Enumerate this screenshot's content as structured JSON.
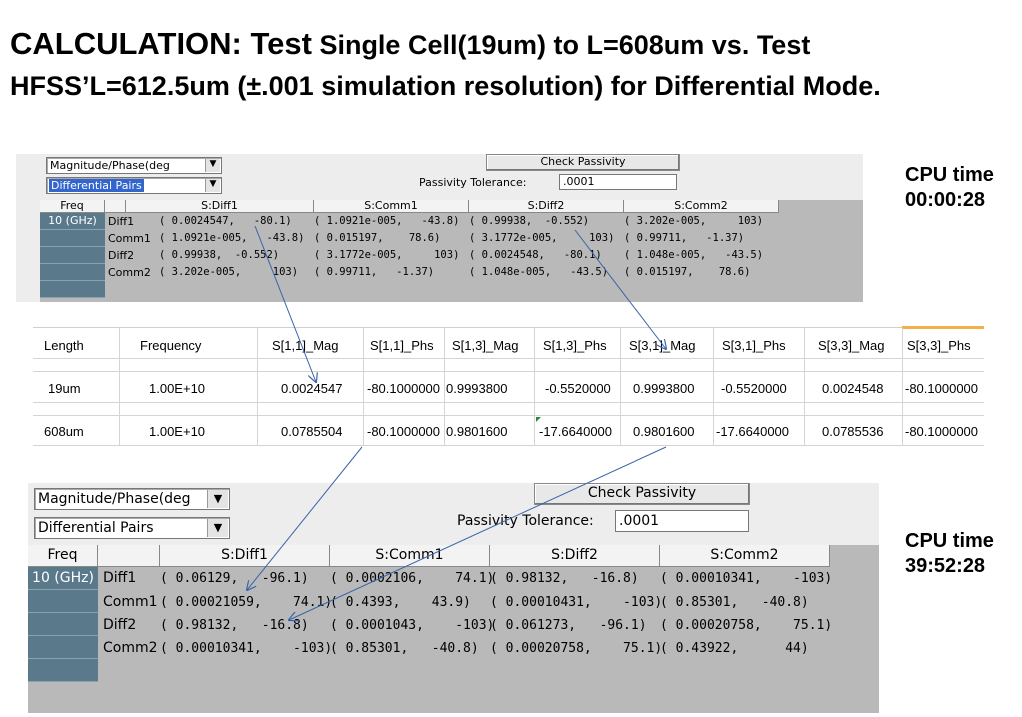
{
  "title": {
    "line1_big": "CALCULATION: Test",
    "line1_rest": " Single Cell(19um)  to  L=608um  vs. Test",
    "line2": "HFSS’L=612.5um (±.001 simulation resolution) for Differential Mode."
  },
  "cpu_top": {
    "label": "CPU time",
    "value": "00:00:28"
  },
  "cpu_bottom": {
    "label": "CPU time",
    "value": "39:52:28"
  },
  "top_panel": {
    "dropdown1": "Magnitude/Phase(deg",
    "dropdown2": "Differential Pairs",
    "check_button": "Check Passivity",
    "tolerance_label": "Passivity Tolerance:",
    "tolerance_value": ".0001",
    "headers": [
      "Freq",
      "S:Diff1",
      "S:Comm1",
      "S:Diff2",
      "S:Comm2"
    ],
    "freq": "10 (GHz)",
    "rows": [
      {
        "label": "Diff1",
        "c1": "( 0.0024547,   -80.1)",
        "c2": "( 1.0921e-005,   -43.8)",
        "c3": "( 0.99938,  -0.552)",
        "c4": "( 3.202e-005,     103)"
      },
      {
        "label": "Comm1",
        "c1": "( 1.0921e-005,   -43.8)",
        "c2": "( 0.015197,    78.6)",
        "c3": "( 3.1772e-005,     103)",
        "c4": "( 0.99711,   -1.37)"
      },
      {
        "label": "Diff2",
        "c1": "( 0.99938,  -0.552)",
        "c2": "( 3.1772e-005,     103)",
        "c3": "( 0.0024548,   -80.1)",
        "c4": "( 1.048e-005,   -43.5)"
      },
      {
        "label": "Comm2",
        "c1": "( 3.202e-005,     103)",
        "c2": "( 0.99711,   -1.37)",
        "c3": "( 1.048e-005,   -43.5)",
        "c4": "( 0.015197,    78.6)"
      }
    ]
  },
  "sheet": {
    "headers": [
      "Length",
      "Frequency",
      "S[1,1]_Mag",
      "S[1,1]_Phs",
      "S[1,3]_Mag",
      "S[1,3]_Phs",
      "S[3,1]_Mag",
      "S[3,1]_Phs",
      "S[3,3]_Mag",
      "S[3,3]_Phs"
    ],
    "rows": [
      [
        "19um",
        "1.00E+10",
        "0.0024547",
        "-80.1000000",
        "0.9993800",
        "-0.5520000",
        "0.9993800",
        "-0.5520000",
        "0.0024548",
        "-80.1000000"
      ],
      [
        "608um",
        "1.00E+10",
        "0.0785504",
        "-80.1000000",
        "0.9801600",
        "-17.6640000",
        "0.9801600",
        "-17.6640000",
        "0.0785536",
        "-80.1000000"
      ]
    ]
  },
  "bottom_panel": {
    "dropdown1": "Magnitude/Phase(deg",
    "dropdown2": "Differential Pairs",
    "check_button": "Check Passivity",
    "tolerance_label": "Passivity Tolerance:",
    "tolerance_value": ".0001",
    "headers": [
      "Freq",
      "S:Diff1",
      "S:Comm1",
      "S:Diff2",
      "S:Comm2"
    ],
    "freq": "10 (GHz)",
    "rows": [
      {
        "label": "Diff1",
        "c1": "( 0.06129,   -96.1)",
        "c2": "( 0.0002106,    74.1)",
        "c3": "( 0.98132,   -16.8)",
        "c4": "( 0.00010341,    -103)"
      },
      {
        "label": "Comm1",
        "c1": "( 0.00021059,    74.1)",
        "c2": "( 0.4393,    43.9)",
        "c3": "( 0.00010431,    -103)",
        "c4": "( 0.85301,   -40.8)"
      },
      {
        "label": "Diff2",
        "c1": "( 0.98132,   -16.8)",
        "c2": "( 0.0001043,    -103)",
        "c3": "( 0.061273,   -96.1)",
        "c4": "( 0.00020758,    75.1)"
      },
      {
        "label": "Comm2",
        "c1": "( 0.00010341,    -103)",
        "c2": "( 0.85301,   -40.8)",
        "c3": "( 0.00020758,    75.1)",
        "c4": "( 0.43922,      44)"
      }
    ]
  },
  "colors": {
    "arrow": "#3a64a8",
    "row_header": "#5a7a8c",
    "grid_bg": "#b9b9b9",
    "sheet_highlight": "#f4b04a"
  }
}
